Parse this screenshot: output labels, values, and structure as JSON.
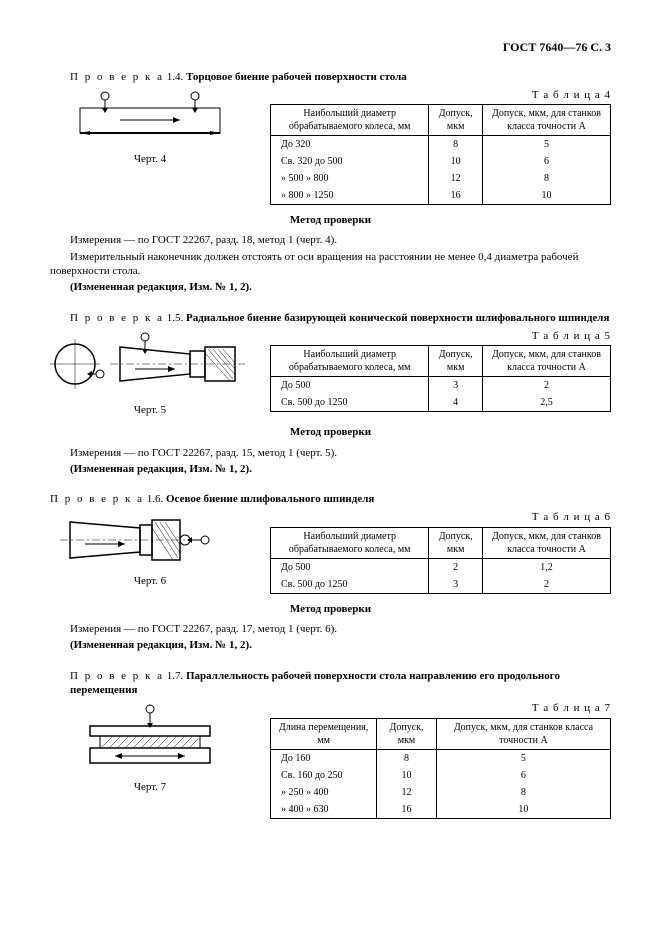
{
  "page_header": "ГОСТ 7640—76 С. 3",
  "sections": [
    {
      "check_prefix": "П р о в е р к а",
      "check_num": "1.4.",
      "check_title": "Торцовое биение рабочей поверхности стола",
      "fig_caption": "Черт. 4",
      "table_label": "Т а б л и ц а  4",
      "columns": [
        "Наибольший диаметр обрабатываемого колеса, мм",
        "Допуск, мкм",
        "Допуск, мкм, для станков класса точности А"
      ],
      "rows": [
        [
          "До  320",
          "8",
          "5"
        ],
        [
          "Св. 320 до   500",
          "10",
          "6"
        ],
        [
          "  »   500   »   800",
          "12",
          "8"
        ],
        [
          "  »   800   » 1250",
          "16",
          "10"
        ]
      ],
      "method_title": "Метод проверки",
      "body": [
        "Измерения — по ГОСТ 22267, разд. 18, метод 1 (черт. 4).",
        "Измерительный наконечник должен отстоять от оси вращения на расстоянии не менее 0,4 диаметра рабочей поверхности стола."
      ],
      "note": "(Измененная редакция, Изм. № 1, 2)."
    },
    {
      "check_prefix": "П р о в е р к а",
      "check_num": "1.5.",
      "check_title": "Радиальное биение базирующей конической поверхности шлифовального шпинделя",
      "fig_caption": "Черт. 5",
      "table_label": "Т а б л и ц а  5",
      "columns": [
        "Наибольший диаметр обрабатываемого колеса, мм",
        "Допуск, мкм",
        "Допуск, мкм, для станков класса точности А"
      ],
      "rows": [
        [
          "До  500",
          "3",
          "2"
        ],
        [
          "Св. 500 до 1250",
          "4",
          "2,5"
        ]
      ],
      "method_title": "Метод проверки",
      "body": [
        "Измерения — по ГОСТ 22267, разд. 15, метод 1 (черт. 5)."
      ],
      "note": "(Измененная редакция, Изм. № 1, 2)."
    },
    {
      "check_prefix": "П р о в е р к а",
      "check_num": "1.6.",
      "check_title": "Осевое биение шлифовального шпинделя",
      "fig_caption": "Черт. 6",
      "table_label": "Т а б л и ц а  6",
      "columns": [
        "Наибольший диаметр обрабатываемого колеса, мм",
        "Допуск, мкм",
        "Допуск, мкм, для станков класса точности А"
      ],
      "rows": [
        [
          "До  500",
          "2",
          "1,2"
        ],
        [
          "Св. 500 до 1250",
          "3",
          "2"
        ]
      ],
      "method_title": "Метод проверки",
      "body": [
        "Измерения — по ГОСТ 22267, разд. 17, метод 1 (черт. 6)."
      ],
      "note": "(Измененная редакция, Изм. № 1, 2)."
    },
    {
      "check_prefix": "П р о в е р к а",
      "check_num": "1.7.",
      "check_title": "Параллельность рабочей поверхности стола направлению его продольного перемещения",
      "fig_caption": "Черт. 7",
      "table_label": "Т а б л и ц а  7",
      "columns": [
        "Длина перемещения, мм",
        "Допуск, мкм",
        "Допуск, мкм, для станков класса точности А"
      ],
      "rows": [
        [
          "До  160",
          "8",
          "5"
        ],
        [
          "Св. 160 до 250",
          "10",
          "6"
        ],
        [
          "  »   250   » 400",
          "12",
          "8"
        ],
        [
          "  »   400   » 630",
          "16",
          "10"
        ]
      ]
    }
  ]
}
